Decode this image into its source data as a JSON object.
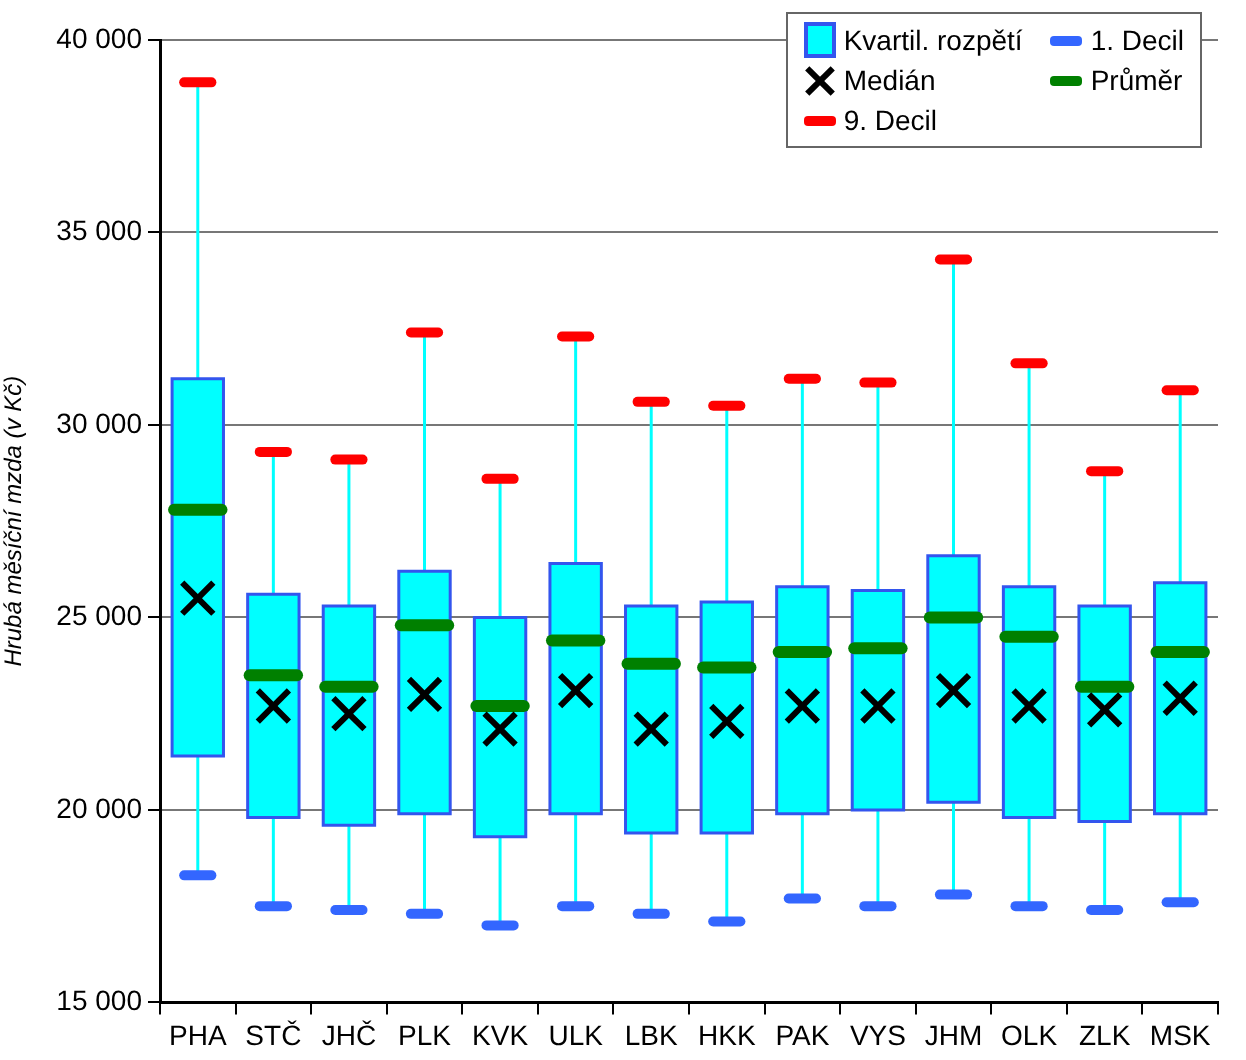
{
  "chart_data": {
    "type": "box",
    "ylabel": "Hrubá měsíční mzda (v Kč)",
    "categories": [
      "PHA",
      "STČ",
      "JHČ",
      "PLK",
      "KVK",
      "ULK",
      "LBK",
      "HKK",
      "PAK",
      "VYS",
      "JHM",
      "OLK",
      "ZLK",
      "MSK"
    ],
    "ylim": [
      15000,
      40000
    ],
    "yticks": [
      {
        "value": 15000,
        "label": "15 000"
      },
      {
        "value": 20000,
        "label": "20 000"
      },
      {
        "value": 25000,
        "label": "25 000"
      },
      {
        "value": 30000,
        "label": "30 000"
      },
      {
        "value": 35000,
        "label": "35 000"
      },
      {
        "value": 40000,
        "label": "40 000"
      }
    ],
    "grid": "y",
    "legend": "top right",
    "annotations": [
      "Medián",
      "9. Decil",
      "1. Decil",
      "Průměr"
    ],
    "series": [
      {
        "name": "Kvartil. rozpětí",
        "type": "box",
        "color": "#00ffff",
        "boxes": [
          {
            "low": 18300,
            "q1": 21400,
            "median": 25500,
            "q3": 31200,
            "high": 38900,
            "mean": 27800
          },
          {
            "low": 17500,
            "q1": 19800,
            "median": 22700,
            "q3": 25600,
            "high": 29300,
            "mean": 23500
          },
          {
            "low": 17400,
            "q1": 19600,
            "median": 22500,
            "q3": 25300,
            "high": 29100,
            "mean": 23200
          },
          {
            "low": 17300,
            "q1": 19900,
            "median": 23000,
            "q3": 26200,
            "high": 32400,
            "mean": 24800
          },
          {
            "low": 17000,
            "q1": 19300,
            "median": 22100,
            "q3": 25000,
            "high": 28600,
            "mean": 22700
          },
          {
            "low": 17500,
            "q1": 19900,
            "median": 23100,
            "q3": 26400,
            "high": 32300,
            "mean": 24400
          },
          {
            "low": 17300,
            "q1": 19400,
            "median": 22100,
            "q3": 25300,
            "high": 30600,
            "mean": 23800
          },
          {
            "low": 17100,
            "q1": 19400,
            "median": 22300,
            "q3": 25400,
            "high": 30500,
            "mean": 23700
          },
          {
            "low": 17700,
            "q1": 19900,
            "median": 22700,
            "q3": 25800,
            "high": 31200,
            "mean": 24100
          },
          {
            "low": 17500,
            "q1": 20000,
            "median": 22700,
            "q3": 25700,
            "high": 31100,
            "mean": 24200
          },
          {
            "low": 17800,
            "q1": 20200,
            "median": 23100,
            "q3": 26600,
            "high": 34300,
            "mean": 25000
          },
          {
            "low": 17500,
            "q1": 19800,
            "median": 22700,
            "q3": 25800,
            "high": 31600,
            "mean": 24500
          },
          {
            "low": 17400,
            "q1": 19700,
            "median": 22600,
            "q3": 25300,
            "high": 28800,
            "mean": 23200
          },
          {
            "low": 17600,
            "q1": 19900,
            "median": 22900,
            "q3": 25900,
            "high": 30900,
            "mean": 24100
          }
        ]
      }
    ]
  }
}
